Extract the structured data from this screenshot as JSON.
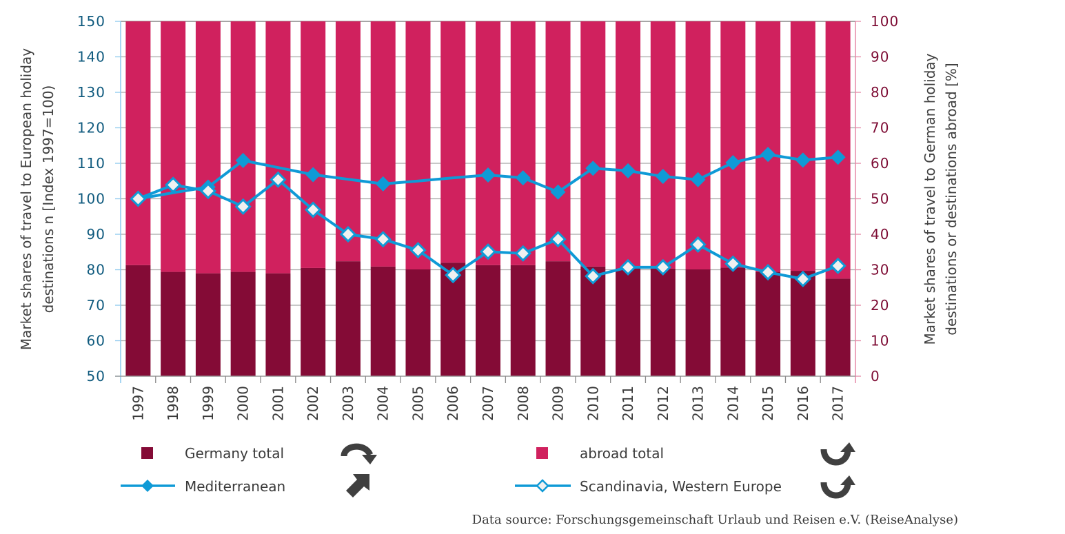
{
  "chart_data": {
    "type": "bar",
    "subtype": "stacked-bar-with-lines-dual-axis",
    "categories": [
      "1997",
      "1998",
      "1999",
      "2000",
      "2001",
      "2002",
      "2003",
      "2004",
      "2005",
      "2006",
      "2007",
      "2008",
      "2009",
      "2010",
      "2011",
      "2012",
      "2013",
      "2014",
      "2015",
      "2016",
      "2017"
    ],
    "bar_series": [
      {
        "name": "Germany total",
        "axis": "right",
        "color": "#840b36",
        "values": [
          31.3,
          29.4,
          29.0,
          29.4,
          29.0,
          30.5,
          32.4,
          30.9,
          30.1,
          32.0,
          31.3,
          31.3,
          32.4,
          30.9,
          30.4,
          30.3,
          30.1,
          30.6,
          29.4,
          29.7,
          27.5
        ]
      },
      {
        "name": "abroad total",
        "axis": "right",
        "color": "#d0215e",
        "values": [
          68.7,
          70.6,
          71.0,
          70.6,
          71.0,
          69.5,
          67.6,
          69.1,
          69.9,
          68.0,
          68.7,
          68.7,
          67.6,
          69.1,
          69.6,
          69.7,
          69.9,
          69.4,
          70.6,
          70.3,
          72.5
        ]
      }
    ],
    "line_series": [
      {
        "name": "Mediterranean",
        "axis": "left",
        "color": "#0f9ad6",
        "marker": "filled-diamond",
        "values": [
          100.0,
          101.7,
          103.3,
          110.8,
          108.8,
          106.8,
          105.5,
          104.2,
          105.0,
          105.9,
          106.7,
          105.9,
          101.9,
          108.6,
          107.9,
          106.3,
          105.4,
          110.2,
          112.5,
          110.9,
          111.7
        ],
        "markers_shown": [
          true,
          false,
          true,
          true,
          false,
          true,
          false,
          true,
          false,
          false,
          true,
          true,
          true,
          true,
          true,
          true,
          true,
          true,
          true,
          true,
          true
        ]
      },
      {
        "name": "Scandinavia, Western Europe",
        "axis": "left",
        "color": "#0f9ad6",
        "marker": "open-diamond",
        "values": [
          100.0,
          103.9,
          102.2,
          97.8,
          105.4,
          96.9,
          90.0,
          88.6,
          85.5,
          78.5,
          85.1,
          84.6,
          88.6,
          78.2,
          80.7,
          80.7,
          87.1,
          81.7,
          79.3,
          77.4,
          81.1
        ],
        "markers_shown": [
          true,
          true,
          true,
          true,
          true,
          true,
          true,
          true,
          true,
          true,
          true,
          true,
          true,
          true,
          true,
          true,
          true,
          true,
          true,
          true,
          true
        ]
      }
    ],
    "y_left": {
      "label_line1": "Market shares of travel to European holiday",
      "label_line2": "destinations n [Index 1997=100)",
      "ylim": [
        50,
        150
      ],
      "ticks": [
        "50",
        "60",
        "70",
        "80",
        "90",
        "100",
        "110",
        "120",
        "130",
        "140",
        "150"
      ]
    },
    "y_right": {
      "label_line1": "Market shares of travel to German holiday",
      "label_line2": "destinations or destinations abroad [%]",
      "ylim": [
        0,
        100
      ],
      "ticks": [
        "0",
        "10",
        "20",
        "30",
        "40",
        "50",
        "60",
        "70",
        "80",
        "90",
        "100"
      ]
    },
    "xlabel": "",
    "grid": true,
    "legend_position": "bottom",
    "legend": [
      {
        "key": "germany",
        "label": "Germany total",
        "symbol": "square",
        "color": "#840b36",
        "trend_icon": "curved-arrow-down-right"
      },
      {
        "key": "abroad",
        "label": "abroad total",
        "symbol": "square",
        "color": "#d0215e",
        "trend_icon": "curved-arrow-up"
      },
      {
        "key": "mediterranean",
        "label": "Mediterranean",
        "symbol": "line-filled-diamond",
        "color": "#0f9ad6",
        "trend_icon": "arrow-up-right"
      },
      {
        "key": "scandinavia",
        "label": "Scandinavia, Western Europe",
        "symbol": "line-open-diamond",
        "color": "#0f9ad6",
        "trend_icon": "curved-arrow-up"
      }
    ],
    "source": "Data source: Forschungsgemeinschaft Urlaub und Reisen e.V. (ReiseAnalyse)"
  },
  "colors": {
    "left_axis_text": "#0f5a7e",
    "right_axis_text": "#7d0c34",
    "grid": "#a6a6a6",
    "icon": "#404040"
  }
}
